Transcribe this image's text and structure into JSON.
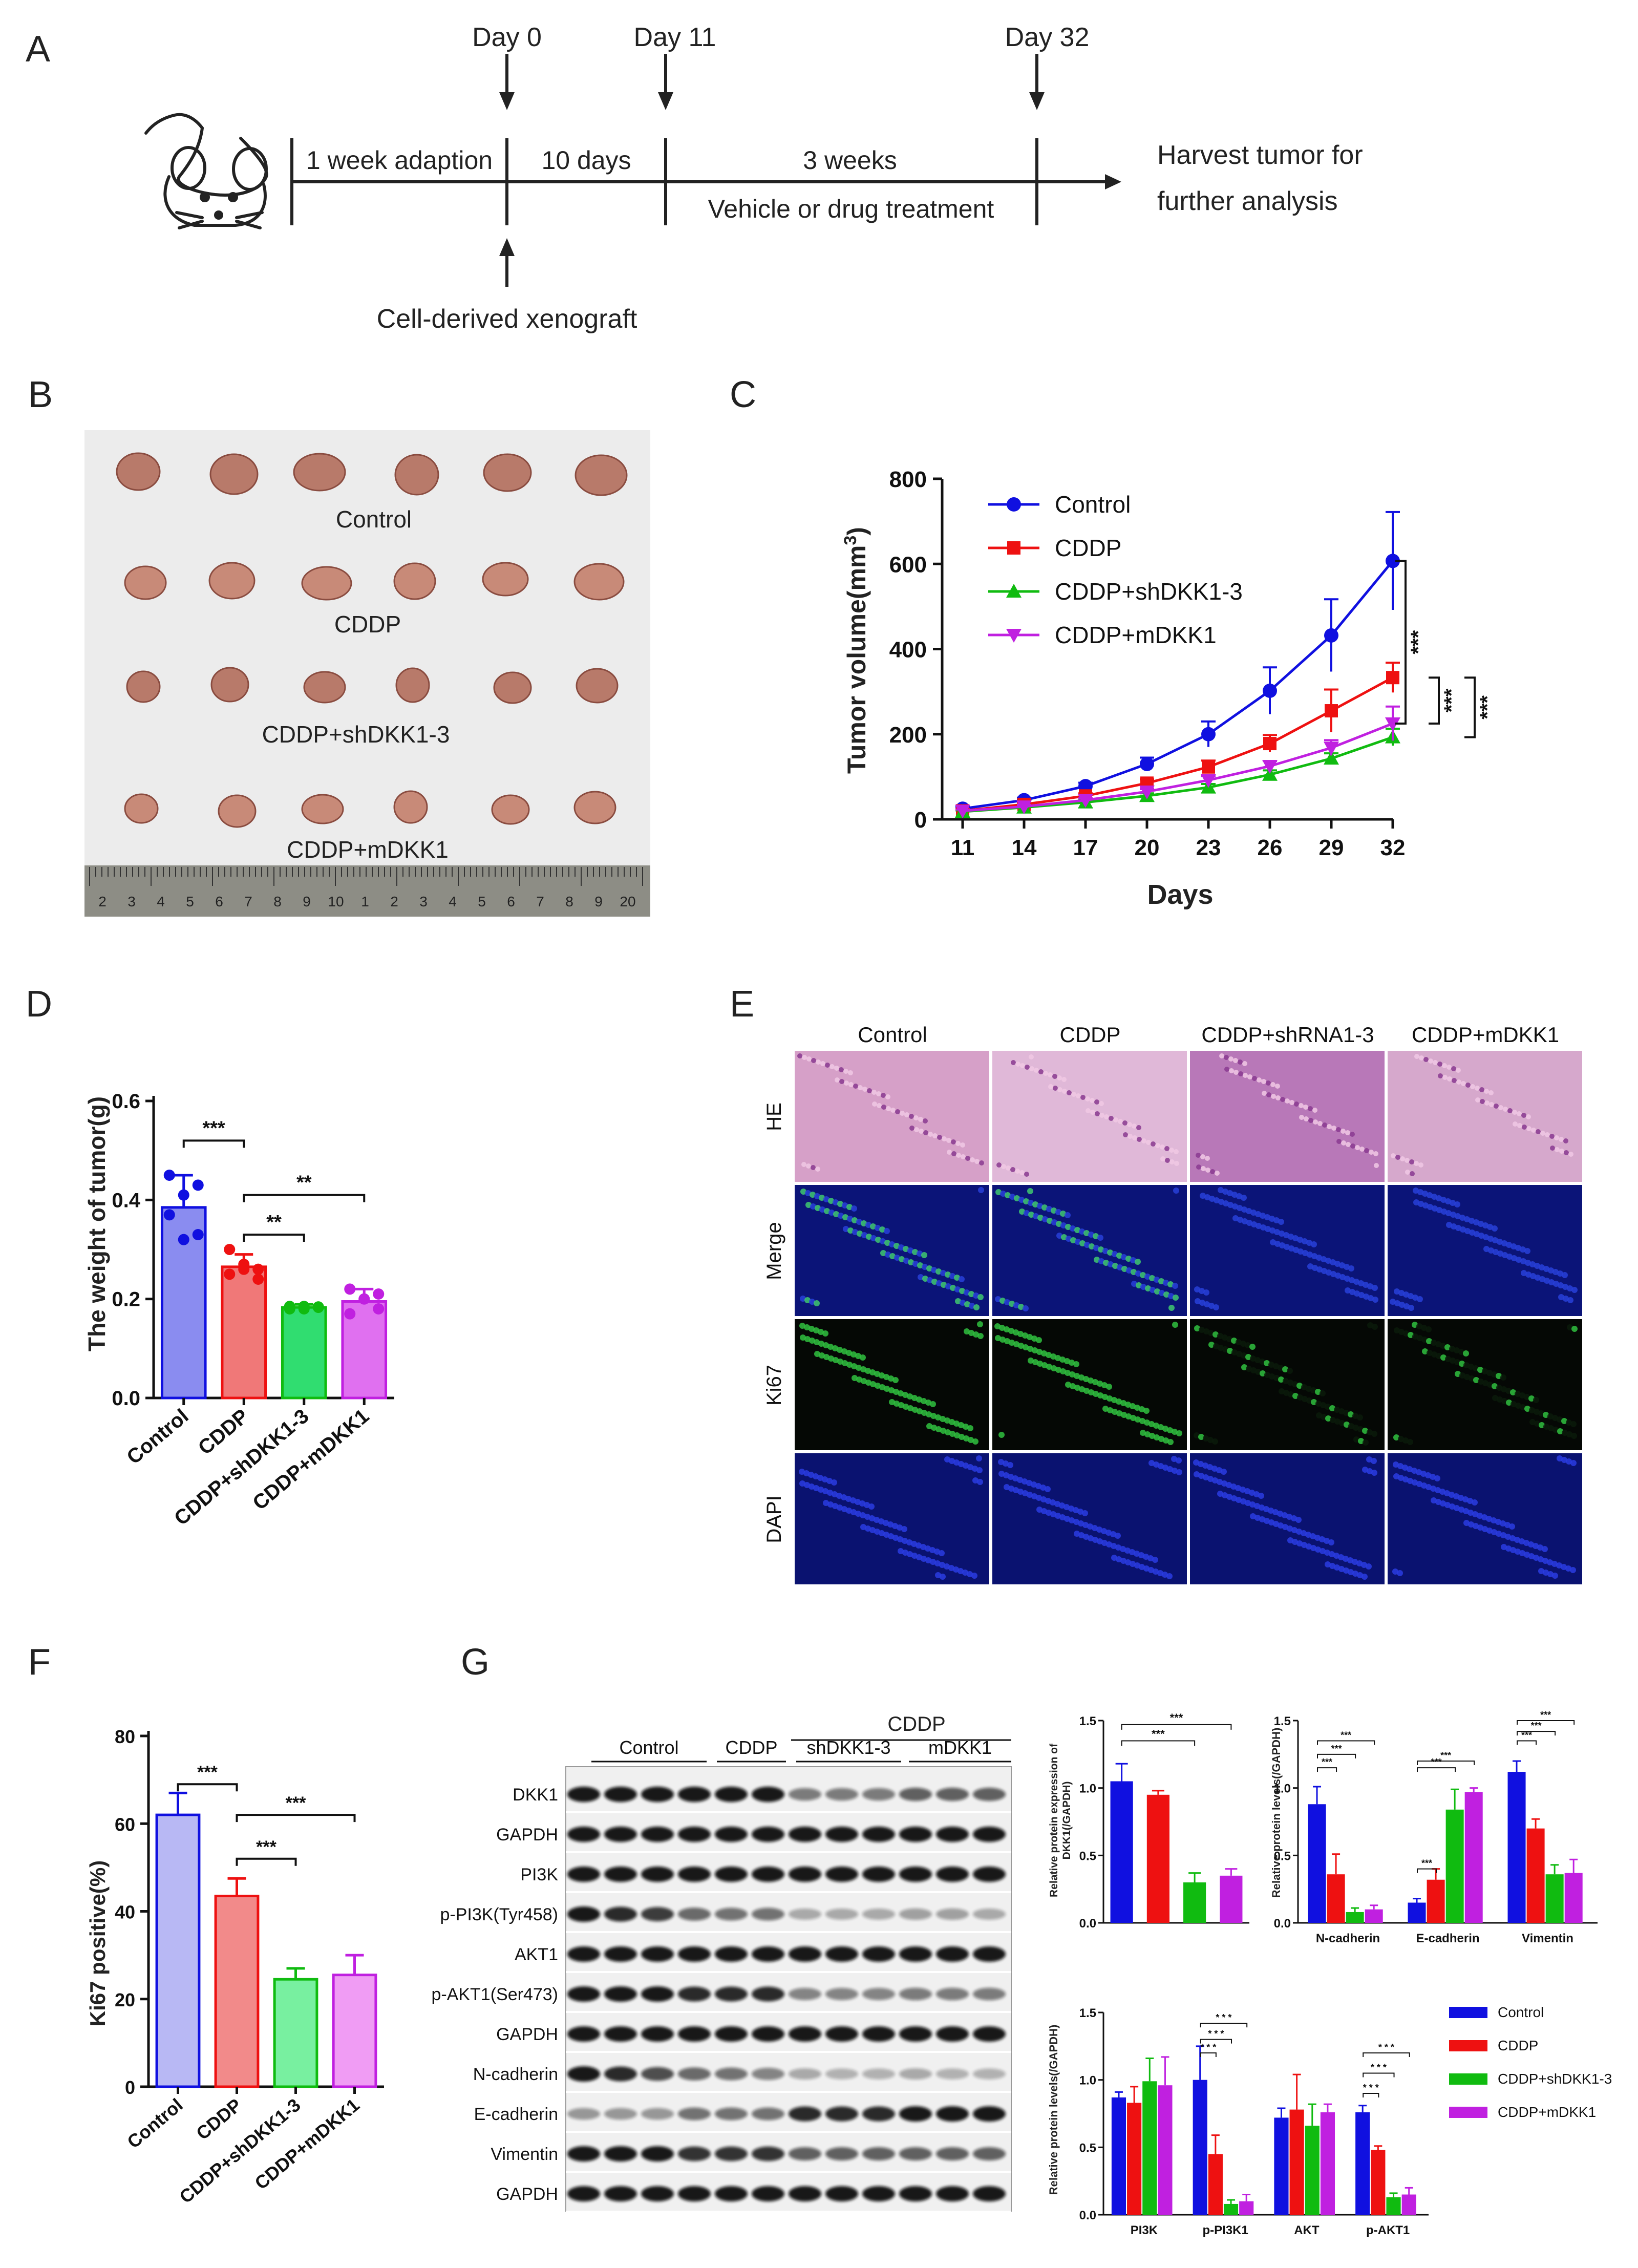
{
  "panels": {
    "A": "A",
    "B": "B",
    "C": "C",
    "D": "D",
    "E": "E",
    "F": "F",
    "G": "G"
  },
  "timeline": {
    "days": [
      "Day 0",
      "Day 11",
      "Day 32"
    ],
    "segments": [
      "1 week adaption",
      "10 days",
      "3 weeks"
    ],
    "treatment": "Vehicle or drug treatment",
    "xenograft": "Cell-derived xenograft",
    "harvest_line1": "Harvest tumor for",
    "harvest_line2": "further analysis"
  },
  "photo": {
    "groups": [
      "Control",
      "CDDP",
      "CDDP+shDKK1-3",
      "CDDP+mDKK1"
    ],
    "ruler_numbers": [
      "2",
      "3",
      "4",
      "5",
      "6",
      "7",
      "8",
      "9",
      "10",
      "1",
      "2",
      "3",
      "4",
      "5",
      "6",
      "7",
      "8",
      "9",
      "20"
    ]
  },
  "colors": {
    "control": "#1010e0",
    "cddp": "#ee1111",
    "shdkk": "#10bb10",
    "mdkk": "#c020e0",
    "bar_control": "#8a8cf0",
    "bar_cddp": "#f07878",
    "bar_shdkk": "#30dd70",
    "bar_mdkk": "#e070f0",
    "bar_F_control": "#b8b8f4",
    "bar_F_cddp": "#f28a8a",
    "bar_F_shdkk": "#78f0a0",
    "bar_F_mdkk": "#f09cf4"
  },
  "chart_C": {
    "type": "line",
    "ylabel_text": "Tumor volume(mm",
    "ylabel_sup": "3",
    "ylabel_close": ")",
    "xlabel": "Days",
    "x": [
      11,
      14,
      17,
      20,
      23,
      26,
      29,
      32
    ],
    "ylim": [
      0,
      800
    ],
    "yticks": [
      0,
      200,
      400,
      600,
      800
    ],
    "series": [
      {
        "name": "Control",
        "values": [
          25,
          45,
          78,
          130,
          200,
          302,
          432,
          607
        ],
        "err": [
          5,
          6,
          8,
          15,
          30,
          55,
          85,
          115
        ]
      },
      {
        "name": "CDDP",
        "values": [
          20,
          35,
          55,
          85,
          123,
          178,
          255,
          333
        ],
        "err": [
          4,
          5,
          6,
          9,
          15,
          20,
          50,
          35
        ]
      },
      {
        "name": "CDDP+shDKK1-3",
        "values": [
          18,
          28,
          40,
          55,
          75,
          105,
          143,
          193
        ],
        "err": [
          3,
          4,
          5,
          6,
          8,
          10,
          12,
          20
        ]
      },
      {
        "name": "CDDP+mDKK1",
        "values": [
          20,
          30,
          45,
          65,
          92,
          125,
          168,
          225
        ],
        "err": [
          3,
          4,
          5,
          6,
          10,
          12,
          18,
          40
        ]
      }
    ],
    "sig": [
      "***",
      "***",
      "***"
    ]
  },
  "chart_D": {
    "type": "bar",
    "ylabel": "The weight of tumor(g)",
    "categories": [
      "Control",
      "CDDP",
      "CDDP+shDKK1-3",
      "CDDP+mDKK1"
    ],
    "values": [
      0.385,
      0.265,
      0.183,
      0.195
    ],
    "err": [
      0.065,
      0.025,
      0.006,
      0.025
    ],
    "points": [
      [
        0.45,
        0.41,
        0.43,
        0.37,
        0.32,
        0.33
      ],
      [
        0.3,
        0.27,
        0.26,
        0.25,
        0.26,
        0.24
      ],
      [
        0.185,
        0.18,
        0.183,
        0.18,
        0.185,
        0.184
      ],
      [
        0.22,
        0.2,
        0.21,
        0.17,
        0.2,
        0.18
      ]
    ],
    "ylim": [
      0,
      0.6
    ],
    "yticks": [
      "0.0",
      "0.2",
      "0.4",
      "0.6"
    ],
    "sig": [
      "***",
      "**",
      "**"
    ]
  },
  "panel_E": {
    "columns": [
      "Control",
      "CDDP",
      "CDDP+shRNA1-3",
      "CDDP+mDKK1"
    ],
    "rows": [
      "HE",
      "Merge",
      "Ki67",
      "DAPI"
    ]
  },
  "chart_F": {
    "type": "bar",
    "ylabel": "Ki67 positive(%)",
    "categories": [
      "Control",
      "CDDP",
      "CDDP+shDKK1-3",
      "CDDP+mDKK1"
    ],
    "values": [
      62,
      43.5,
      24.5,
      25.5
    ],
    "err": [
      5,
      4,
      2.5,
      4.5
    ],
    "ylim": [
      0,
      80
    ],
    "yticks": [
      0,
      20,
      40,
      60,
      80
    ],
    "sig": [
      "***",
      "***",
      "***"
    ]
  },
  "western": {
    "header_top": "CDDP",
    "groups": [
      "Control",
      "CDDP",
      "shDKK1-3",
      "mDKK1"
    ],
    "labels": [
      "DKK1",
      "GAPDH",
      "PI3K",
      "p-PI3K(Tyr458)",
      "AKT1",
      "p-AKT1(Ser473)",
      "GAPDH",
      "N-cadherin",
      "E-cadherin",
      "Vimentin",
      "GAPDH"
    ]
  },
  "chart_G1": {
    "type": "bar",
    "ylabel_line1": "Relative protein expression of",
    "ylabel_line2": "DKK1(/GAPDH)",
    "categories": [
      "Control",
      "CDDP",
      "CDDP+shDKK1-3",
      "CDDP+mDKK1"
    ],
    "values": [
      1.05,
      0.95,
      0.3,
      0.35
    ],
    "err": [
      0.13,
      0.03,
      0.07,
      0.05
    ],
    "ylim": [
      0,
      1.5
    ],
    "yticks": [
      "0.0",
      "0.5",
      "1.0",
      "1.5"
    ],
    "sig": [
      "***",
      "***"
    ]
  },
  "chart_G2": {
    "type": "bar",
    "ylabel": "Relative protein levels(/GAPDH)",
    "categories": [
      "N-cadherin",
      "E-cadherin",
      "Vimentin"
    ],
    "series": [
      {
        "name": "Control",
        "values": [
          0.88,
          0.15,
          1.12
        ],
        "err": [
          0.13,
          0.03,
          0.08
        ]
      },
      {
        "name": "CDDP",
        "values": [
          0.36,
          0.32,
          0.7
        ],
        "err": [
          0.15,
          0.08,
          0.07
        ]
      },
      {
        "name": "CDDP+shDKK1-3",
        "values": [
          0.08,
          0.84,
          0.36
        ],
        "err": [
          0.03,
          0.15,
          0.07
        ]
      },
      {
        "name": "CDDP+mDKK1",
        "values": [
          0.1,
          0.97,
          0.37
        ],
        "err": [
          0.03,
          0.03,
          0.1
        ]
      }
    ],
    "ylim": [
      0,
      1.5
    ],
    "yticks": [
      "0.0",
      "0.5",
      "1.0",
      "1.5"
    ],
    "sig": "***"
  },
  "chart_G3": {
    "type": "bar",
    "ylabel": "Relative protein levels(/GAPDH)",
    "categories": [
      "PI3K",
      "p-PI3K1",
      "AKT",
      "p-AKT1"
    ],
    "series": [
      {
        "name": "Control",
        "values": [
          0.87,
          1.0,
          0.72,
          0.76
        ],
        "err": [
          0.04,
          0.25,
          0.07,
          0.05
        ]
      },
      {
        "name": "CDDP",
        "values": [
          0.83,
          0.45,
          0.78,
          0.48
        ],
        "err": [
          0.12,
          0.14,
          0.26,
          0.03
        ]
      },
      {
        "name": "CDDP+shDKK1-3",
        "values": [
          0.99,
          0.08,
          0.66,
          0.13
        ],
        "err": [
          0.17,
          0.03,
          0.16,
          0.03
        ]
      },
      {
        "name": "CDDP+mDKK1",
        "values": [
          0.96,
          0.1,
          0.76,
          0.15
        ],
        "err": [
          0.21,
          0.05,
          0.06,
          0.05
        ]
      }
    ],
    "ylim": [
      0,
      1.5
    ],
    "yticks": [
      "0.0",
      "0.5",
      "1.0",
      "1.5"
    ],
    "sig": "* * *"
  },
  "legend_G": [
    "Control",
    "CDDP",
    "CDDP+shDKK1-3",
    "CDDP+mDKK1"
  ]
}
